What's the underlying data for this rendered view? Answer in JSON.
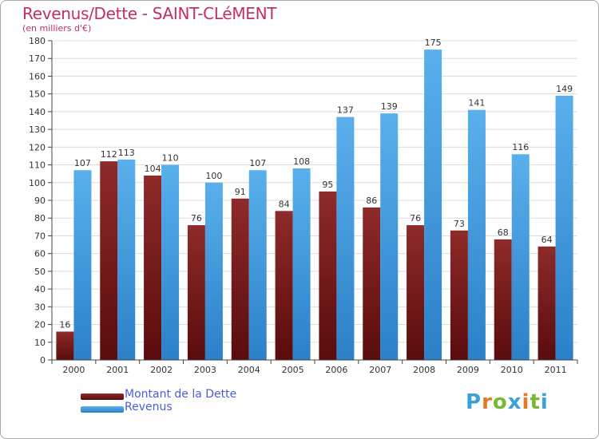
{
  "chart_data": {
    "type": "bar",
    "title": "Revenus/Dette - SAINT-CLéMENT",
    "subtitle": "(en milliers d'€)",
    "categories": [
      "2000",
      "2001",
      "2002",
      "2003",
      "2004",
      "2005",
      "2006",
      "2007",
      "2008",
      "2009",
      "2010",
      "2011"
    ],
    "series": [
      {
        "name": "Montant de la Dette",
        "color": "#7a1a1a",
        "values": [
          16,
          112,
          104,
          76,
          91,
          84,
          95,
          86,
          76,
          73,
          68,
          64
        ]
      },
      {
        "name": "Revenus",
        "color": "#3f9ae0",
        "values": [
          107,
          113,
          110,
          100,
          107,
          108,
          137,
          139,
          175,
          141,
          116,
          149
        ]
      }
    ],
    "ylim": [
      0,
      180
    ],
    "ytick_step": 10,
    "grid": true,
    "legend_position": "bottom-left"
  },
  "logo": {
    "text": "Proxiti",
    "letter_colors": [
      "#3aa0d8",
      "#e07a2a",
      "#78b832",
      "#3aa0d8",
      "#e07a2a",
      "#78b832",
      "#3aa0d8"
    ]
  }
}
